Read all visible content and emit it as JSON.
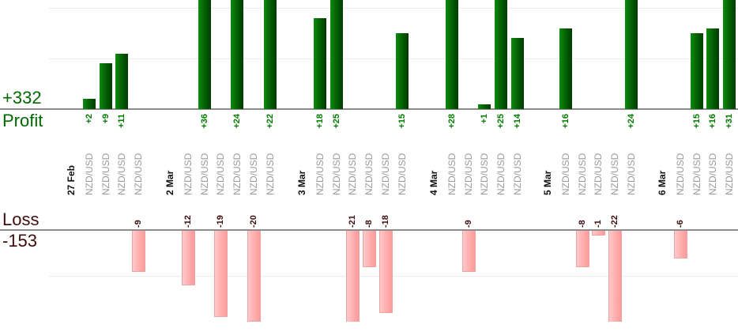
{
  "chart_data": {
    "type": "bar",
    "axis_left": {
      "profit_total": "+332",
      "profit_label": "Profit",
      "loss_label": "Loss",
      "loss_total": "-153"
    },
    "groups": [
      {
        "date": "27 Feb",
        "trades": [
          {
            "symbol": "NZD/USD",
            "value": 2,
            "label": "+2"
          },
          {
            "symbol": "NZD/USD",
            "value": 9,
            "label": "+9"
          },
          {
            "symbol": "NZD/USD",
            "value": 11,
            "label": "+11"
          },
          {
            "symbol": "NZD/USD",
            "value": -9,
            "label": "-9"
          }
        ]
      },
      {
        "date": "2 Mar",
        "trades": [
          {
            "symbol": "NZD/USD",
            "value": -12,
            "label": "-12"
          },
          {
            "symbol": "NZD/USD",
            "value": 36,
            "label": "+36"
          },
          {
            "symbol": "NZD/USD",
            "value": -19,
            "label": "-19"
          },
          {
            "symbol": "NZD/USD",
            "value": 24,
            "label": "+24"
          },
          {
            "symbol": "NZD/USD",
            "value": -20,
            "label": "-20"
          },
          {
            "symbol": "NZD/USD",
            "value": 22,
            "label": "+22"
          }
        ]
      },
      {
        "date": "3 Mar",
        "trades": [
          {
            "symbol": "NZD/USD",
            "value": 18,
            "label": "+18"
          },
          {
            "symbol": "NZD/USD",
            "value": 25,
            "label": "+25"
          },
          {
            "symbol": "NZD/USD",
            "value": -21,
            "label": "-21"
          },
          {
            "symbol": "NZD/USD",
            "value": -8,
            "label": "-8"
          },
          {
            "symbol": "NZD/USD",
            "value": -18,
            "label": "-18"
          },
          {
            "symbol": "NZD/USD",
            "value": 15,
            "label": "+15"
          }
        ]
      },
      {
        "date": "4 Mar",
        "trades": [
          {
            "symbol": "NZD/USD",
            "value": 28,
            "label": "+28"
          },
          {
            "symbol": "NZD/USD",
            "value": -9,
            "label": "-9"
          },
          {
            "symbol": "NZD/USD",
            "value": 1,
            "label": "+1"
          },
          {
            "symbol": "NZD/USD",
            "value": 25,
            "label": "+25"
          },
          {
            "symbol": "NZD/USD",
            "value": 14,
            "label": "+14"
          }
        ]
      },
      {
        "date": "5 Mar",
        "trades": [
          {
            "symbol": "NZD/USD",
            "value": 16,
            "label": "+16"
          },
          {
            "symbol": "NZD/USD",
            "value": -8,
            "label": "-8"
          },
          {
            "symbol": "NZD/USD",
            "value": -1,
            "label": "-1"
          },
          {
            "symbol": "NZD/USD",
            "value": -22,
            "label": "-22"
          },
          {
            "symbol": "NZD/USD",
            "value": 24,
            "label": "+24"
          }
        ]
      },
      {
        "date": "6 Mar",
        "trades": [
          {
            "symbol": "NZD/USD",
            "value": -6,
            "label": "-6"
          },
          {
            "symbol": "NZD/USD",
            "value": 15,
            "label": "+15"
          },
          {
            "symbol": "NZD/USD",
            "value": 16,
            "label": "+16"
          },
          {
            "symbol": "NZD/USD",
            "value": 31,
            "label": "+31"
          }
        ]
      }
    ],
    "profit_axis": {
      "visible_range": [
        0,
        21
      ],
      "gridline_interval": 10,
      "grid": true,
      "bars_clipped_above": 21
    },
    "loss_axis": {
      "visible_range": [
        0,
        -20
      ],
      "gridline_interval": 10,
      "grid": true,
      "bars_clipped_below": -20
    },
    "colors": {
      "profit_bar": "#006400",
      "profit_text": "#007b00",
      "profit_axis_text": "#006a00",
      "loss_bar": "#ffadad",
      "loss_bar_border": "#f0a3a3",
      "loss_text": "#3f0d0d",
      "symbol_text": "#9a9a9a",
      "date_text": "#111111",
      "axis_line": "#8c8c8c",
      "gridline": "#ececec"
    }
  }
}
